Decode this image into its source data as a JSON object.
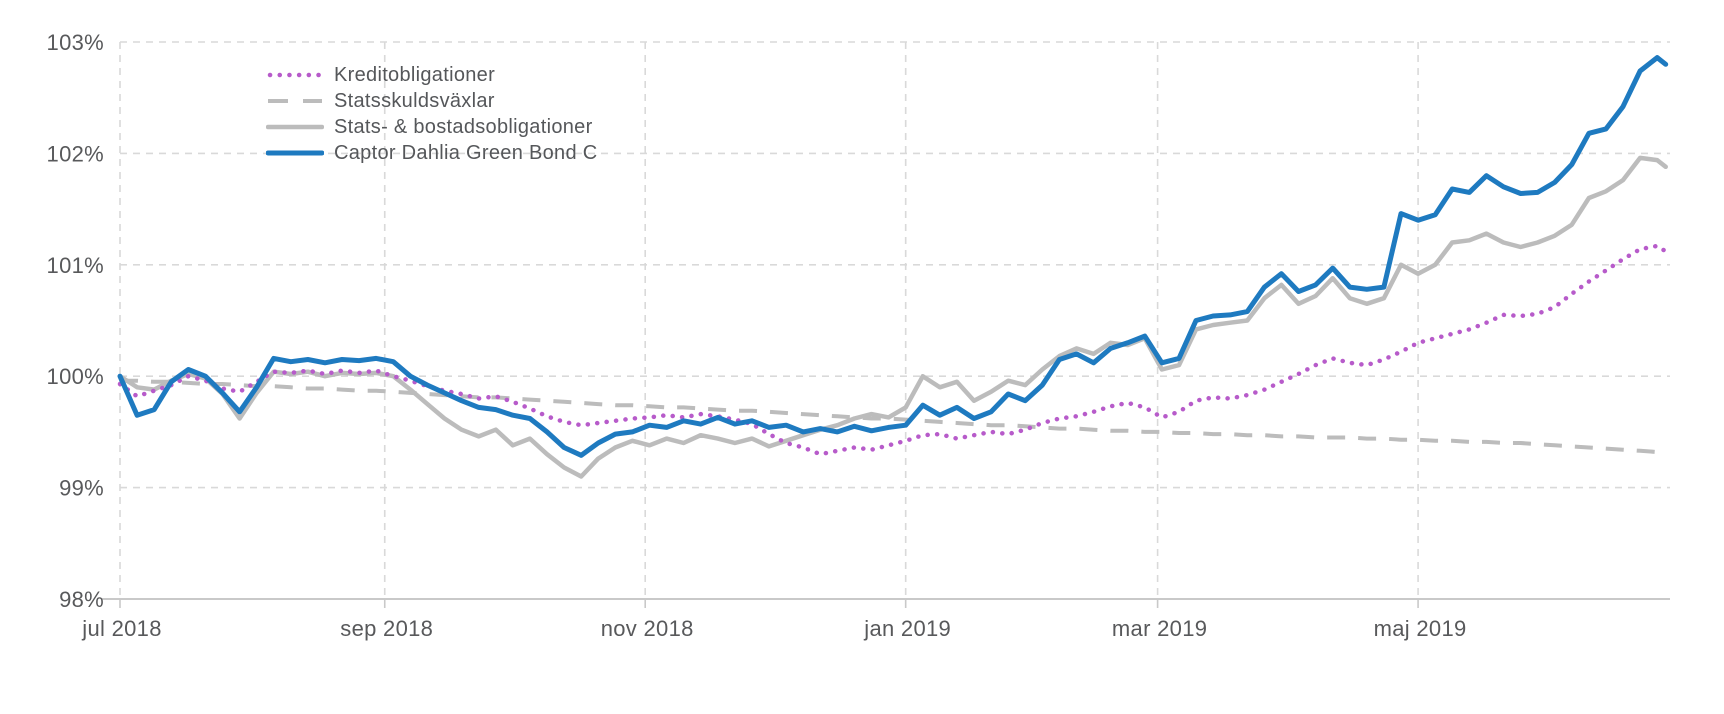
{
  "chart": {
    "title": "",
    "y_axis": {
      "ticks": [
        {
          "label": "103%",
          "value": 103
        },
        {
          "label": "102%",
          "value": 102
        },
        {
          "label": "101%",
          "value": 101
        },
        {
          "label": "100%",
          "value": 100
        },
        {
          "label": "99%",
          "value": 99
        },
        {
          "label": "98%",
          "value": 98
        }
      ]
    },
    "x_axis": {
      "ticks": [
        {
          "label": "jul 2018",
          "day": 0
        },
        {
          "label": "sep 2018",
          "day": 62
        },
        {
          "label": "nov 2018",
          "day": 123
        },
        {
          "label": "jan 2019",
          "day": 184
        },
        {
          "label": "mar 2019",
          "day": 243
        },
        {
          "label": "maj 2019",
          "day": 304
        }
      ]
    },
    "colors": {
      "grid": "#d9d9d9",
      "axis_line": "#c9c9c9",
      "text": "#58595b"
    }
  },
  "chart_data": {
    "type": "line",
    "title": "",
    "xlabel": "",
    "ylabel": "",
    "ylim": [
      98,
      103
    ],
    "x_unit": "days since 2018-07-01",
    "x_domain_days": 363,
    "grid": "dashed",
    "legend_position": "top-left",
    "y_tick_labels": [
      "103%",
      "102%",
      "101%",
      "100%",
      "99%",
      "98%"
    ],
    "x_tick_labels": [
      "jul 2018",
      "sep 2018",
      "nov 2018",
      "jan 2019",
      "mar 2019",
      "maj 2019"
    ],
    "x": [
      0,
      4,
      8,
      12,
      16,
      20,
      24,
      28,
      32,
      36,
      40,
      44,
      48,
      52,
      56,
      60,
      64,
      68,
      72,
      76,
      80,
      84,
      88,
      92,
      96,
      100,
      104,
      108,
      112,
      116,
      120,
      124,
      128,
      132,
      136,
      140,
      144,
      148,
      152,
      156,
      160,
      164,
      168,
      172,
      176,
      180,
      184,
      188,
      192,
      196,
      200,
      204,
      208,
      212,
      216,
      220,
      224,
      228,
      232,
      236,
      240,
      244,
      248,
      252,
      256,
      260,
      264,
      268,
      272,
      276,
      280,
      284,
      288,
      292,
      296,
      300,
      304,
      308,
      312,
      316,
      320,
      324,
      328,
      332,
      336,
      340,
      344,
      348,
      352,
      356,
      360,
      362
    ],
    "series": [
      {
        "name": "Kreditobligationer",
        "color": "#b75bca",
        "style": "dotted",
        "stroke_width": 4.5,
        "values": [
          99.93,
          99.82,
          99.87,
          99.92,
          100.0,
          99.96,
          99.89,
          99.86,
          99.95,
          100.04,
          100.03,
          100.05,
          100.02,
          100.05,
          100.03,
          100.05,
          100.0,
          99.96,
          99.91,
          99.87,
          99.84,
          99.8,
          99.82,
          99.77,
          99.71,
          99.64,
          99.59,
          99.56,
          99.58,
          99.6,
          99.62,
          99.63,
          99.65,
          99.63,
          99.66,
          99.64,
          99.61,
          99.57,
          99.48,
          99.4,
          99.36,
          99.3,
          99.33,
          99.36,
          99.34,
          99.38,
          99.42,
          99.47,
          99.48,
          99.44,
          99.47,
          99.5,
          99.48,
          99.52,
          99.58,
          99.62,
          99.64,
          99.68,
          99.73,
          99.76,
          99.72,
          99.63,
          99.68,
          99.78,
          99.81,
          99.8,
          99.83,
          99.88,
          99.95,
          100.02,
          100.1,
          100.16,
          100.12,
          100.1,
          100.15,
          100.22,
          100.3,
          100.34,
          100.38,
          100.42,
          100.48,
          100.55,
          100.54,
          100.56,
          100.62,
          100.74,
          100.85,
          100.95,
          101.05,
          101.14,
          101.17,
          101.12
        ]
      },
      {
        "name": "Statsskuldsväxlar",
        "color": "#bcbcbc",
        "style": "dashed",
        "stroke_width": 4,
        "values": [
          99.96,
          99.96,
          99.95,
          99.95,
          99.94,
          99.93,
          99.93,
          99.92,
          99.91,
          99.91,
          99.9,
          99.89,
          99.89,
          99.88,
          99.87,
          99.87,
          99.86,
          99.85,
          99.84,
          99.83,
          99.82,
          99.81,
          99.81,
          99.8,
          99.79,
          99.78,
          99.77,
          99.76,
          99.75,
          99.74,
          99.74,
          99.73,
          99.72,
          99.72,
          99.71,
          99.7,
          99.69,
          99.69,
          99.68,
          99.67,
          99.66,
          99.65,
          99.64,
          99.63,
          99.62,
          99.62,
          99.61,
          99.6,
          99.59,
          99.58,
          99.57,
          99.56,
          99.56,
          99.55,
          99.54,
          99.53,
          99.53,
          99.52,
          99.51,
          99.51,
          99.5,
          99.5,
          99.49,
          99.49,
          99.48,
          99.48,
          99.47,
          99.47,
          99.46,
          99.46,
          99.45,
          99.45,
          99.45,
          99.44,
          99.44,
          99.43,
          99.43,
          99.42,
          99.42,
          99.41,
          99.41,
          99.4,
          99.4,
          99.39,
          99.38,
          99.37,
          99.36,
          99.35,
          99.34,
          99.33,
          99.32,
          99.31
        ]
      },
      {
        "name": "Stats- & bostadsobligationer",
        "color": "#bcbcbc",
        "style": "solid",
        "stroke_width": 4.5,
        "values": [
          100.0,
          99.9,
          99.88,
          99.96,
          100.02,
          99.98,
          99.84,
          99.62,
          99.85,
          100.04,
          100.02,
          100.04,
          100.0,
          100.03,
          100.02,
          100.03,
          100.0,
          99.88,
          99.75,
          99.62,
          99.52,
          99.46,
          99.52,
          99.38,
          99.44,
          99.3,
          99.18,
          99.1,
          99.26,
          99.36,
          99.42,
          99.38,
          99.44,
          99.4,
          99.47,
          99.44,
          99.4,
          99.44,
          99.37,
          99.42,
          99.47,
          99.52,
          99.56,
          99.62,
          99.66,
          99.63,
          99.72,
          100.0,
          99.9,
          99.95,
          99.78,
          99.86,
          99.96,
          99.92,
          100.06,
          100.18,
          100.25,
          100.2,
          100.3,
          100.28,
          100.34,
          100.06,
          100.1,
          100.42,
          100.46,
          100.48,
          100.5,
          100.7,
          100.82,
          100.65,
          100.72,
          100.88,
          100.7,
          100.65,
          100.7,
          101.0,
          100.92,
          101.0,
          101.2,
          101.22,
          101.28,
          101.2,
          101.16,
          101.2,
          101.26,
          101.36,
          101.6,
          101.66,
          101.76,
          101.96,
          101.94,
          101.88
        ]
      },
      {
        "name": "Captor Dahlia Green Bond C",
        "color": "#1e7ac0",
        "style": "solid",
        "stroke_width": 5,
        "values": [
          100.0,
          99.65,
          99.7,
          99.95,
          100.06,
          100.0,
          99.85,
          99.68,
          99.9,
          100.16,
          100.13,
          100.15,
          100.12,
          100.15,
          100.14,
          100.16,
          100.13,
          100.0,
          99.92,
          99.85,
          99.78,
          99.72,
          99.7,
          99.65,
          99.62,
          99.5,
          99.36,
          99.29,
          99.4,
          99.48,
          99.5,
          99.56,
          99.54,
          99.6,
          99.57,
          99.63,
          99.57,
          99.6,
          99.54,
          99.56,
          99.5,
          99.53,
          99.5,
          99.55,
          99.51,
          99.54,
          99.56,
          99.74,
          99.65,
          99.72,
          99.62,
          99.68,
          99.84,
          99.78,
          99.92,
          100.15,
          100.2,
          100.12,
          100.25,
          100.3,
          100.36,
          100.12,
          100.16,
          100.5,
          100.54,
          100.55,
          100.58,
          100.8,
          100.92,
          100.76,
          100.82,
          100.97,
          100.8,
          100.78,
          100.8,
          101.46,
          101.4,
          101.45,
          101.68,
          101.65,
          101.8,
          101.7,
          101.64,
          101.65,
          101.74,
          101.9,
          102.18,
          102.22,
          102.42,
          102.74,
          102.86,
          102.8
        ]
      }
    ]
  }
}
